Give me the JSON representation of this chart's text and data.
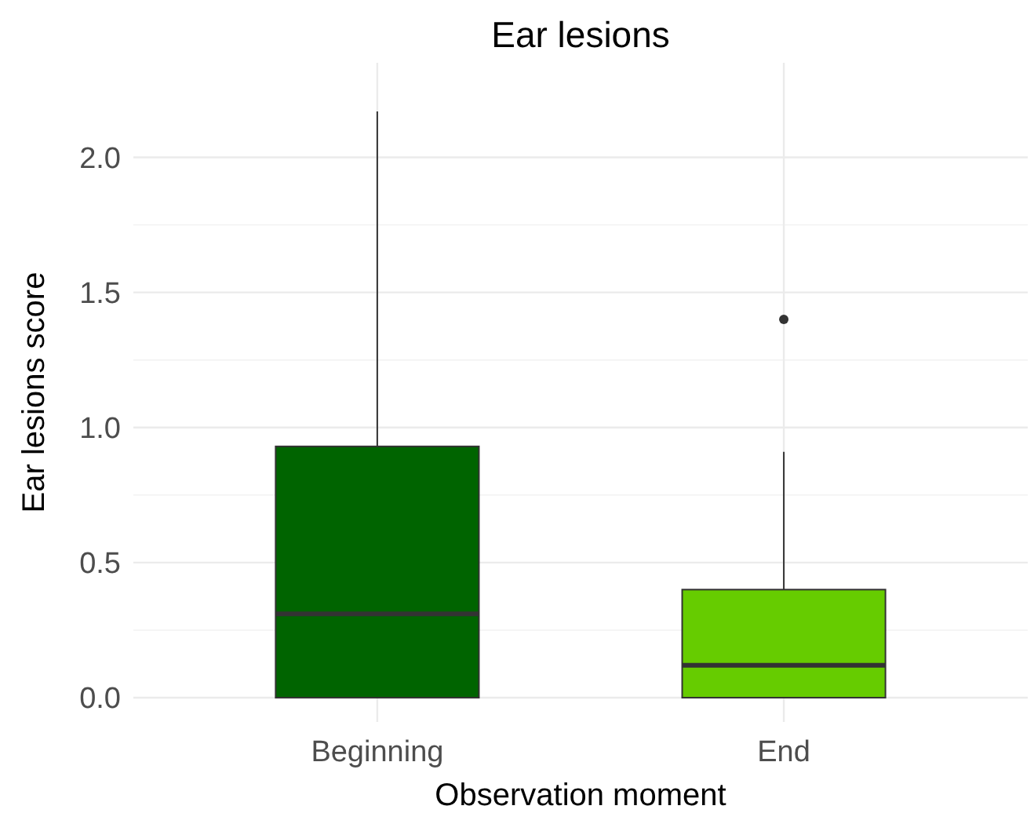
{
  "chart_data": {
    "type": "box",
    "title": "Ear lesions",
    "xlabel": "Observation moment",
    "ylabel": "Ear lesions score",
    "categories": [
      "Beginning",
      "End"
    ],
    "boxes": [
      {
        "q1": 0,
        "median": 0.31,
        "q3": 0.93,
        "high": 2.17
      },
      {
        "q1": 0,
        "median": 0.12,
        "q3": 0.4,
        "high": 0.91,
        "outliers": [
          1.4
        ]
      }
    ],
    "colors": [
      "#006400",
      "#66cc00"
    ],
    "ylim": [
      -0.09,
      2.35
    ],
    "yticks": [
      {
        "value": 0,
        "label": "0.0"
      },
      {
        "value": 0.5,
        "label": "0.5"
      },
      {
        "value": 1,
        "label": "1.0"
      },
      {
        "value": 1.5,
        "label": "1.5"
      },
      {
        "value": 2,
        "label": "2.0"
      }
    ],
    "grid": true
  }
}
